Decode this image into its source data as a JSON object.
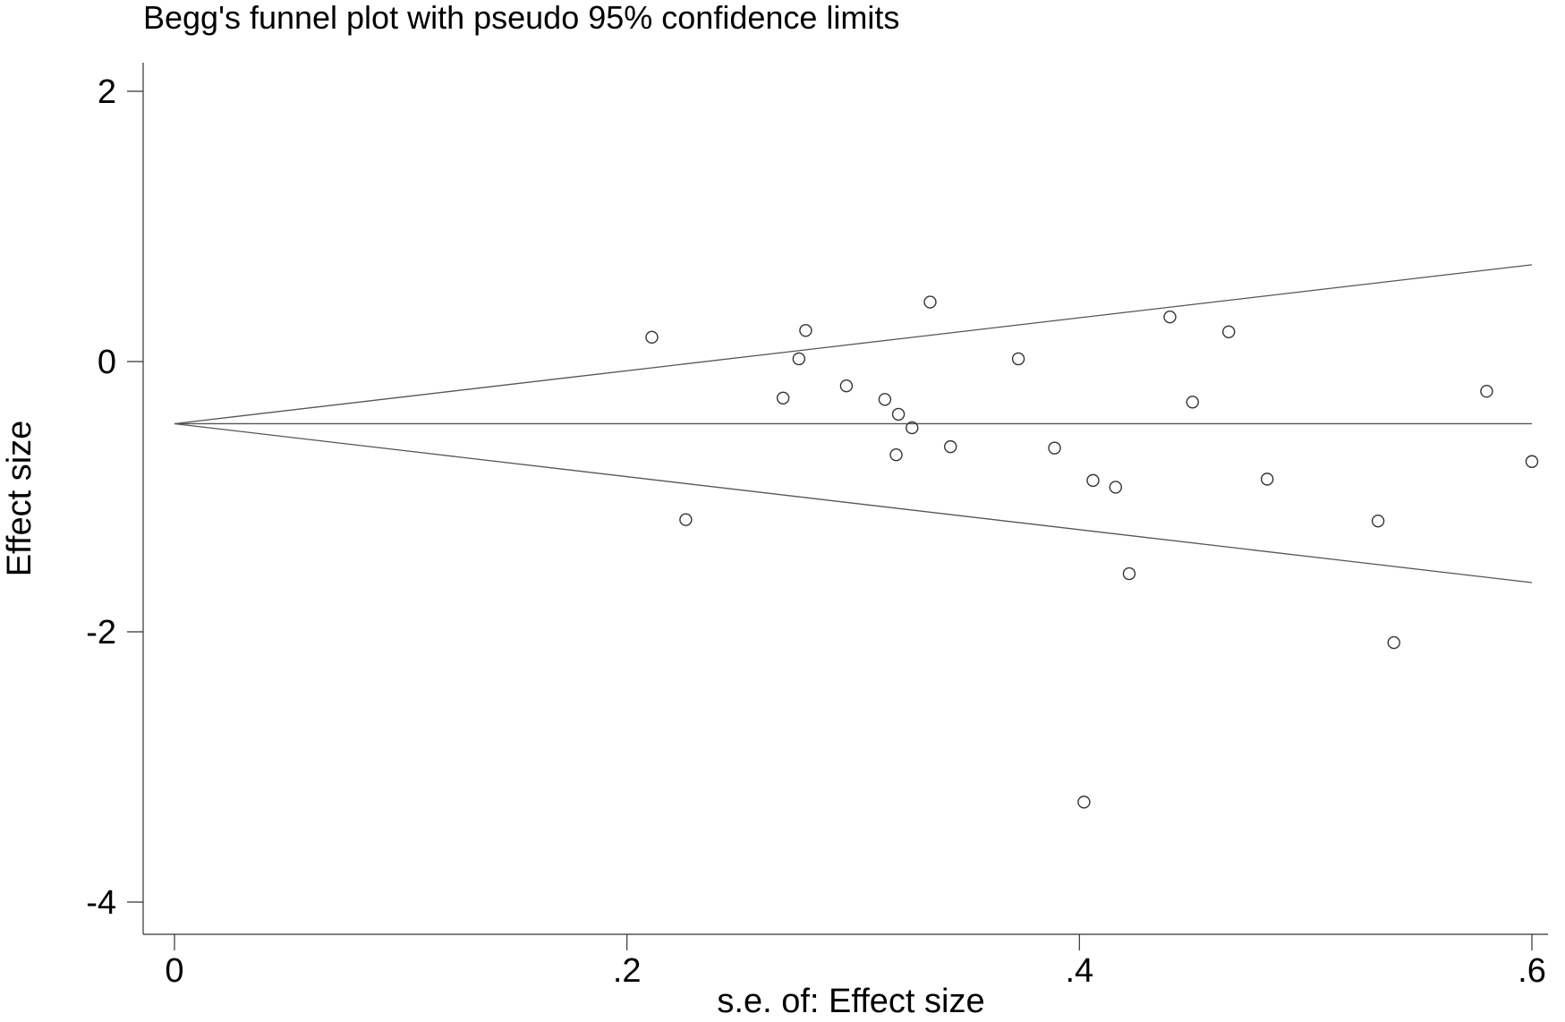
{
  "chart_data": {
    "type": "scatter",
    "title": "Begg's funnel plot with pseudo 95% confidence limits",
    "xlabel": "s.e. of: Effect size",
    "ylabel": "Effect size",
    "xlim": [
      0,
      0.6
    ],
    "ylim": [
      -4,
      2
    ],
    "x_ticks": [
      {
        "value": 0,
        "label": "0"
      },
      {
        "value": 0.2,
        "label": ".2"
      },
      {
        "value": 0.4,
        "label": ".4"
      },
      {
        "value": 0.6,
        "label": ".6"
      }
    ],
    "y_ticks": [
      {
        "value": 2,
        "label": "2"
      },
      {
        "value": 0,
        "label": "0"
      },
      {
        "value": -2,
        "label": "-2"
      },
      {
        "value": -4,
        "label": "-4"
      }
    ],
    "pooled_effect": -0.46,
    "ci_multiplier": 1.96,
    "grid": false,
    "legend": "none",
    "points": [
      {
        "x": 0.211,
        "y": 0.18
      },
      {
        "x": 0.226,
        "y": -1.17
      },
      {
        "x": 0.269,
        "y": -0.27
      },
      {
        "x": 0.276,
        "y": 0.02
      },
      {
        "x": 0.279,
        "y": 0.23
      },
      {
        "x": 0.297,
        "y": -0.18
      },
      {
        "x": 0.314,
        "y": -0.28
      },
      {
        "x": 0.319,
        "y": -0.69
      },
      {
        "x": 0.32,
        "y": -0.39
      },
      {
        "x": 0.326,
        "y": -0.49
      },
      {
        "x": 0.334,
        "y": 0.44
      },
      {
        "x": 0.343,
        "y": -0.63
      },
      {
        "x": 0.373,
        "y": 0.02
      },
      {
        "x": 0.389,
        "y": -0.64
      },
      {
        "x": 0.402,
        "y": -3.26
      },
      {
        "x": 0.406,
        "y": -0.88
      },
      {
        "x": 0.416,
        "y": -0.93
      },
      {
        "x": 0.422,
        "y": -1.57
      },
      {
        "x": 0.44,
        "y": 0.33
      },
      {
        "x": 0.45,
        "y": -0.3
      },
      {
        "x": 0.466,
        "y": 0.22
      },
      {
        "x": 0.483,
        "y": -0.87
      },
      {
        "x": 0.532,
        "y": -1.18
      },
      {
        "x": 0.539,
        "y": -2.08
      },
      {
        "x": 0.58,
        "y": -0.22
      },
      {
        "x": 0.6,
        "y": -0.74
      }
    ]
  }
}
